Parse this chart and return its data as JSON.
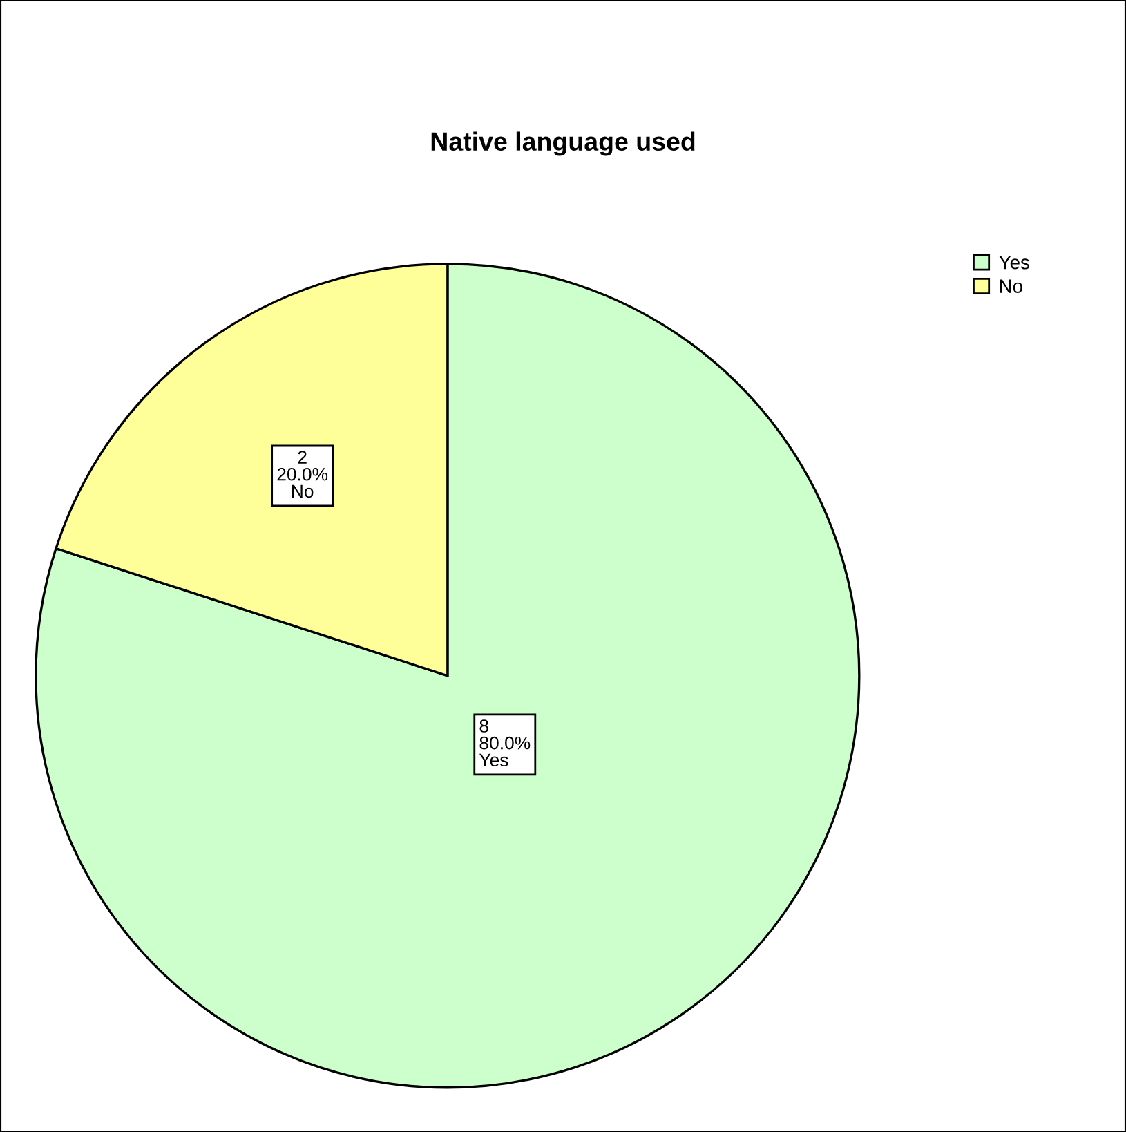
{
  "chart_data": {
    "type": "pie",
    "title": "Native language used",
    "categories": [
      "Yes",
      "No"
    ],
    "values": [
      8,
      2
    ],
    "colors": [
      "#ccffcc",
      "#ffff99"
    ],
    "value_labels": [
      "8\n80.0%\nYes",
      "2\n20.0%\nNo"
    ],
    "legend": "top right"
  }
}
